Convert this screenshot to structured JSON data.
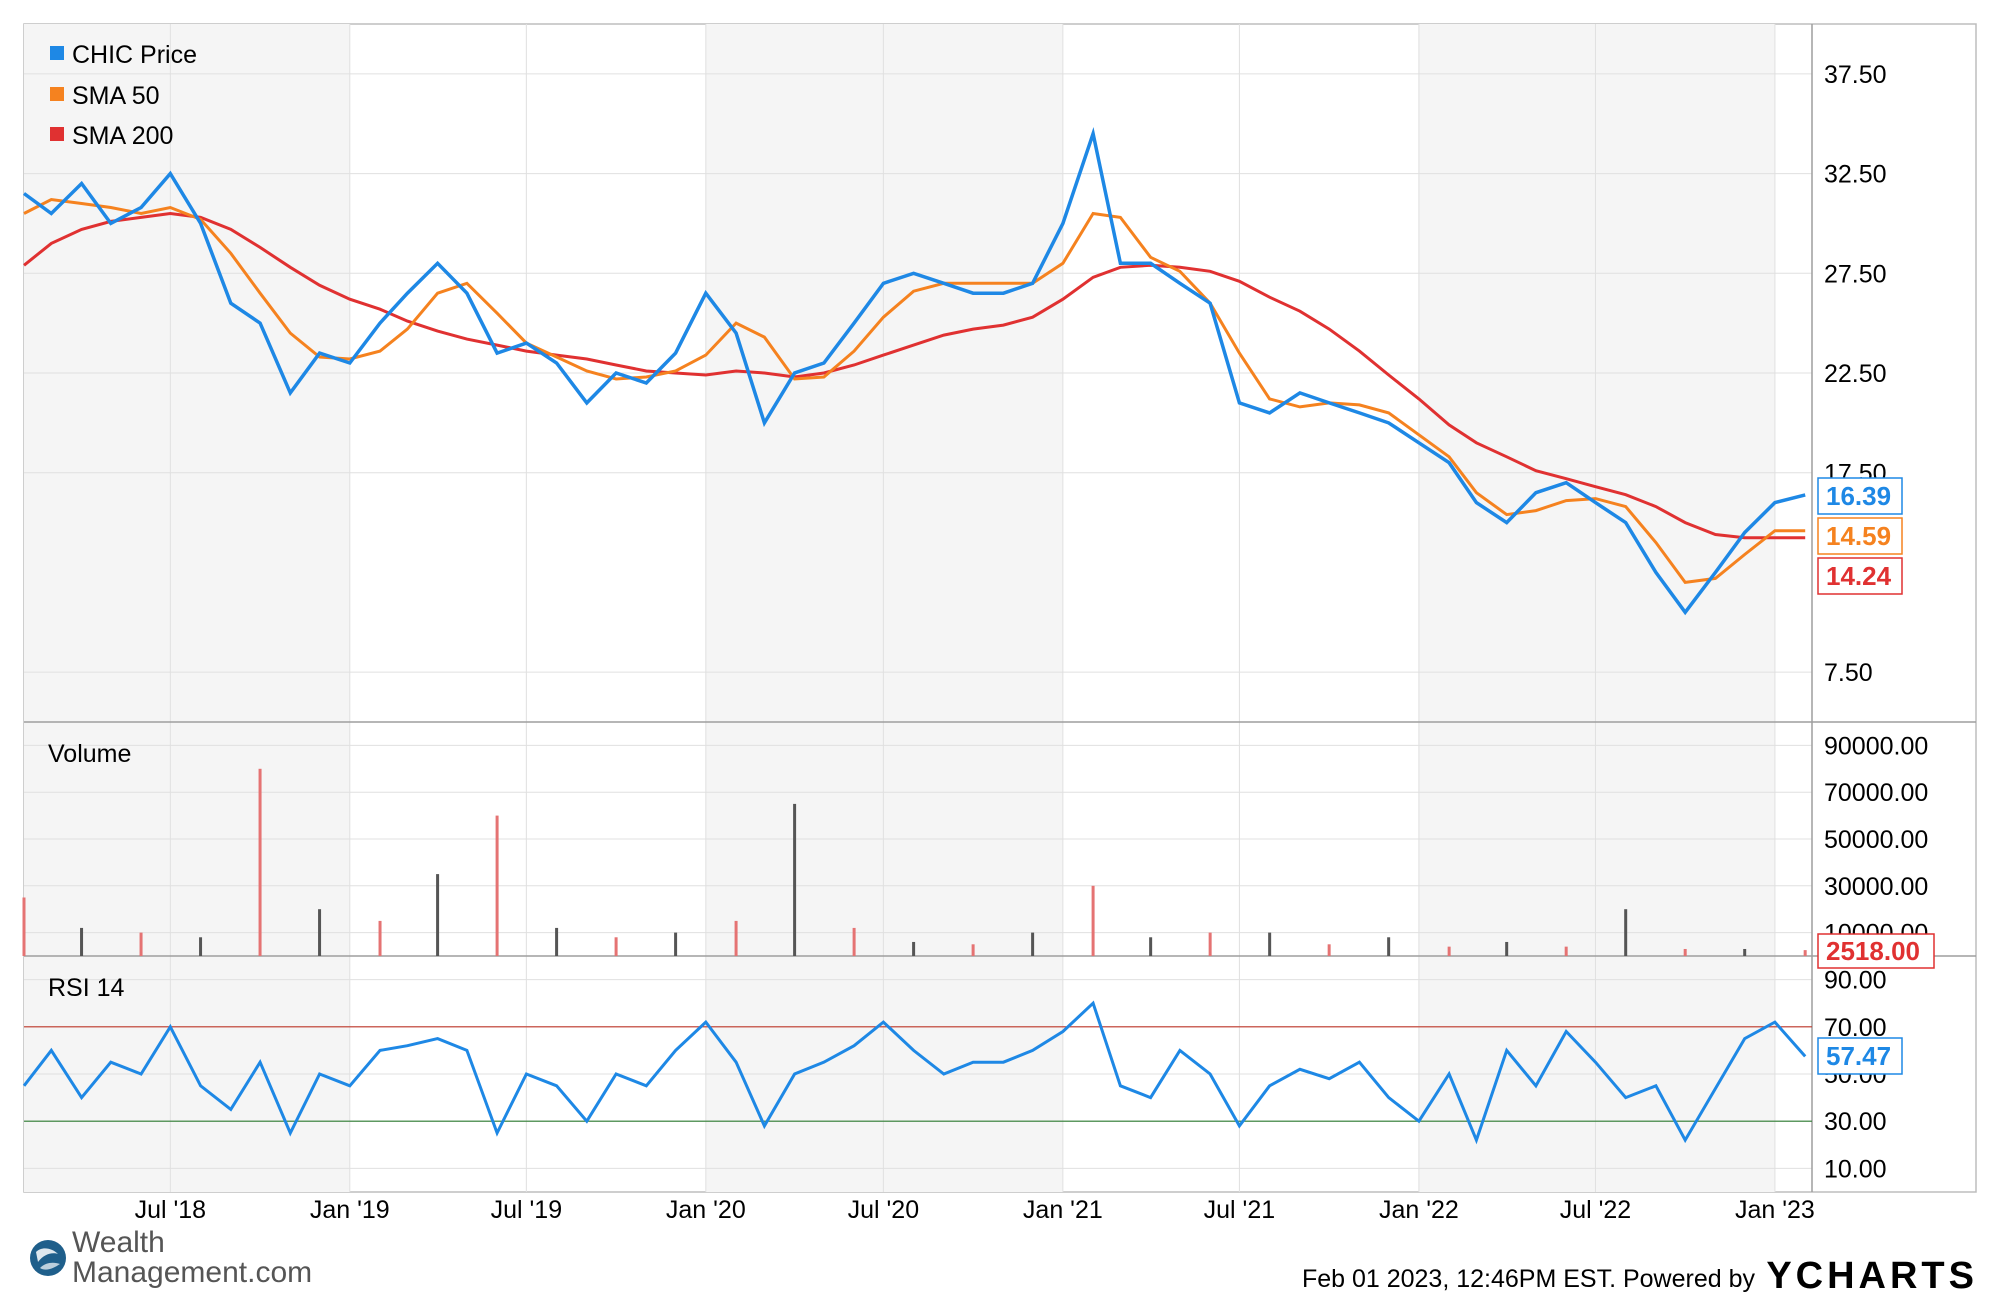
{
  "chart_data": [
    {
      "type": "line",
      "panel": "price",
      "legend": [
        {
          "name": "CHIC Price",
          "color": "#1e88e5"
        },
        {
          "name": "SMA 50",
          "color": "#f5821f"
        },
        {
          "name": "SMA 200",
          "color": "#e03131"
        }
      ],
      "y_ticks": [
        "37.50",
        "32.50",
        "27.50",
        "22.50",
        "17.50",
        "7.50"
      ],
      "ylim": [
        5.0,
        40.0
      ],
      "last_values": {
        "price": "16.39",
        "sma50": "14.59",
        "sma200": "14.24"
      },
      "x": [
        "2018-02-01",
        "2018-03-01",
        "2018-04-01",
        "2018-05-01",
        "2018-06-01",
        "2018-07-01",
        "2018-08-01",
        "2018-09-01",
        "2018-10-01",
        "2018-11-01",
        "2018-12-01",
        "2019-01-01",
        "2019-02-01",
        "2019-03-01",
        "2019-04-01",
        "2019-05-01",
        "2019-06-01",
        "2019-07-01",
        "2019-08-01",
        "2019-09-01",
        "2019-10-01",
        "2019-11-01",
        "2019-12-01",
        "2020-01-01",
        "2020-02-01",
        "2020-03-01",
        "2020-04-01",
        "2020-05-01",
        "2020-06-01",
        "2020-07-01",
        "2020-08-01",
        "2020-09-01",
        "2020-10-01",
        "2020-11-01",
        "2020-12-01",
        "2021-01-01",
        "2021-02-01",
        "2021-03-01",
        "2021-04-01",
        "2021-05-01",
        "2021-06-01",
        "2021-07-01",
        "2021-08-01",
        "2021-09-01",
        "2021-10-01",
        "2021-11-01",
        "2021-12-01",
        "2022-01-01",
        "2022-02-01",
        "2022-03-01",
        "2022-04-01",
        "2022-05-01",
        "2022-06-01",
        "2022-07-01",
        "2022-08-01",
        "2022-09-01",
        "2022-10-01",
        "2022-11-01",
        "2022-12-01",
        "2023-01-01",
        "2023-02-01"
      ],
      "series": [
        {
          "name": "CHIC Price",
          "values": [
            31.5,
            30.5,
            32.0,
            30.0,
            30.8,
            32.5,
            30.0,
            26.0,
            25.0,
            21.5,
            23.5,
            23.0,
            25.0,
            26.5,
            28.0,
            26.5,
            23.5,
            24.0,
            23.0,
            21.0,
            22.5,
            22.0,
            23.5,
            26.5,
            24.5,
            20.0,
            22.5,
            23.0,
            25.0,
            27.0,
            27.5,
            27.0,
            26.5,
            26.5,
            27.0,
            30.0,
            34.5,
            28.0,
            28.0,
            27.0,
            26.0,
            21.0,
            20.5,
            21.5,
            21.0,
            20.5,
            20.0,
            19.0,
            18.0,
            16.0,
            15.0,
            16.5,
            17.0,
            16.0,
            15.0,
            12.5,
            10.5,
            12.5,
            14.5,
            16.0,
            16.39
          ]
        },
        {
          "name": "SMA 50",
          "values": [
            30.5,
            31.2,
            31.0,
            30.8,
            30.5,
            30.8,
            30.2,
            28.5,
            26.5,
            24.5,
            23.3,
            23.2,
            23.6,
            24.7,
            26.5,
            27.0,
            25.5,
            24.0,
            23.3,
            22.6,
            22.2,
            22.3,
            22.6,
            23.4,
            25.0,
            24.3,
            22.2,
            22.3,
            23.6,
            25.3,
            26.6,
            27.0,
            27.0,
            27.0,
            27.0,
            28.0,
            30.5,
            30.3,
            28.3,
            27.6,
            26.0,
            23.5,
            21.2,
            20.8,
            21.0,
            20.9,
            20.5,
            19.4,
            18.3,
            16.5,
            15.4,
            15.6,
            16.1,
            16.2,
            15.8,
            14.0,
            12.0,
            12.2,
            13.4,
            14.59,
            14.59
          ]
        },
        {
          "name": "SMA 200",
          "values": [
            27.9,
            29.0,
            29.7,
            30.1,
            30.3,
            30.5,
            30.3,
            29.7,
            28.8,
            27.8,
            26.9,
            26.2,
            25.7,
            25.1,
            24.6,
            24.2,
            23.9,
            23.6,
            23.4,
            23.2,
            22.9,
            22.6,
            22.5,
            22.4,
            22.6,
            22.5,
            22.3,
            22.5,
            22.9,
            23.4,
            23.9,
            24.4,
            24.7,
            24.9,
            25.3,
            26.2,
            27.3,
            27.8,
            27.9,
            27.8,
            27.6,
            27.1,
            26.3,
            25.6,
            24.7,
            23.6,
            22.4,
            21.2,
            19.9,
            19.0,
            18.3,
            17.6,
            17.2,
            16.8,
            16.4,
            15.8,
            15.0,
            14.4,
            14.24,
            14.24,
            14.24
          ]
        }
      ]
    },
    {
      "type": "bar",
      "panel": "volume",
      "title": "Volume",
      "y_ticks": [
        "90000.00",
        "70000.00",
        "50000.00",
        "30000.00",
        "10000.00"
      ],
      "ylim": [
        0,
        100000
      ],
      "last_value": "2518.00",
      "x": [
        "2018-02-01",
        "2018-04-01",
        "2018-06-01",
        "2018-08-01",
        "2018-10-01",
        "2018-12-01",
        "2019-02-01",
        "2019-04-01",
        "2019-06-01",
        "2019-08-01",
        "2019-10-01",
        "2019-12-01",
        "2020-02-01",
        "2020-04-01",
        "2020-06-01",
        "2020-08-01",
        "2020-10-01",
        "2020-12-01",
        "2021-02-01",
        "2021-04-01",
        "2021-06-01",
        "2021-08-01",
        "2021-10-01",
        "2021-12-01",
        "2022-02-01",
        "2022-04-01",
        "2022-06-01",
        "2022-08-01",
        "2022-10-01",
        "2022-12-01",
        "2023-02-01"
      ],
      "values": [
        25000,
        12000,
        10000,
        8000,
        80000,
        20000,
        15000,
        35000,
        60000,
        12000,
        8000,
        10000,
        15000,
        65000,
        12000,
        6000,
        5000,
        10000,
        30000,
        8000,
        10000,
        10000,
        5000,
        8000,
        4000,
        6000,
        4000,
        20000,
        3000,
        3000,
        2518
      ]
    },
    {
      "type": "line",
      "panel": "rsi",
      "title": "RSI 14",
      "y_ticks": [
        "90.00",
        "70.00",
        "50.00",
        "30.00",
        "10.00"
      ],
      "ylim": [
        0,
        100
      ],
      "reference_lines": [
        70,
        30
      ],
      "last_value": "57.47",
      "x": [
        "2018-02-01",
        "2018-03-01",
        "2018-04-01",
        "2018-05-01",
        "2018-06-01",
        "2018-07-01",
        "2018-08-01",
        "2018-09-01",
        "2018-10-01",
        "2018-11-01",
        "2018-12-01",
        "2019-01-01",
        "2019-02-01",
        "2019-03-01",
        "2019-04-01",
        "2019-05-01",
        "2019-06-01",
        "2019-07-01",
        "2019-08-01",
        "2019-09-01",
        "2019-10-01",
        "2019-11-01",
        "2019-12-01",
        "2020-01-01",
        "2020-02-01",
        "2020-03-01",
        "2020-04-01",
        "2020-05-01",
        "2020-06-01",
        "2020-07-01",
        "2020-08-01",
        "2020-09-01",
        "2020-10-01",
        "2020-11-01",
        "2020-12-01",
        "2021-01-01",
        "2021-02-01",
        "2021-03-01",
        "2021-04-01",
        "2021-05-01",
        "2021-06-01",
        "2021-07-01",
        "2021-08-01",
        "2021-09-01",
        "2021-10-01",
        "2021-11-01",
        "2021-12-01",
        "2022-01-01",
        "2022-02-01",
        "2022-03-01",
        "2022-04-01",
        "2022-05-01",
        "2022-06-01",
        "2022-07-01",
        "2022-08-01",
        "2022-09-01",
        "2022-10-01",
        "2022-12-01",
        "2023-01-01",
        "2023-02-01"
      ],
      "values": [
        45,
        60,
        40,
        55,
        50,
        70,
        45,
        35,
        55,
        25,
        50,
        45,
        60,
        62,
        65,
        60,
        25,
        50,
        45,
        30,
        50,
        45,
        60,
        72,
        55,
        28,
        50,
        55,
        62,
        72,
        60,
        50,
        55,
        55,
        60,
        68,
        80,
        45,
        40,
        60,
        50,
        28,
        45,
        52,
        48,
        55,
        40,
        30,
        50,
        22,
        60,
        45,
        68,
        55,
        40,
        45,
        22,
        65,
        72,
        57.47
      ]
    }
  ],
  "x_labels": [
    "Jul '18",
    "Jan '19",
    "Jul '19",
    "Jan '20",
    "Jul '20",
    "Jan '21",
    "Jul '21",
    "Jan '22",
    "Jul '22",
    "Jan '23"
  ],
  "footer": {
    "logo_text": "Wealth\nManagement.com",
    "timestamp": "Feb 01 2023, 12:46PM EST. Powered by",
    "brand": "YCHARTS"
  },
  "colors": {
    "price": "#1e88e5",
    "sma50": "#f5821f",
    "sma200": "#e03131",
    "ref70": "#c0392b",
    "ref30": "#2e7d32",
    "vol_up": "#e57373",
    "vol_down": "#555555"
  }
}
